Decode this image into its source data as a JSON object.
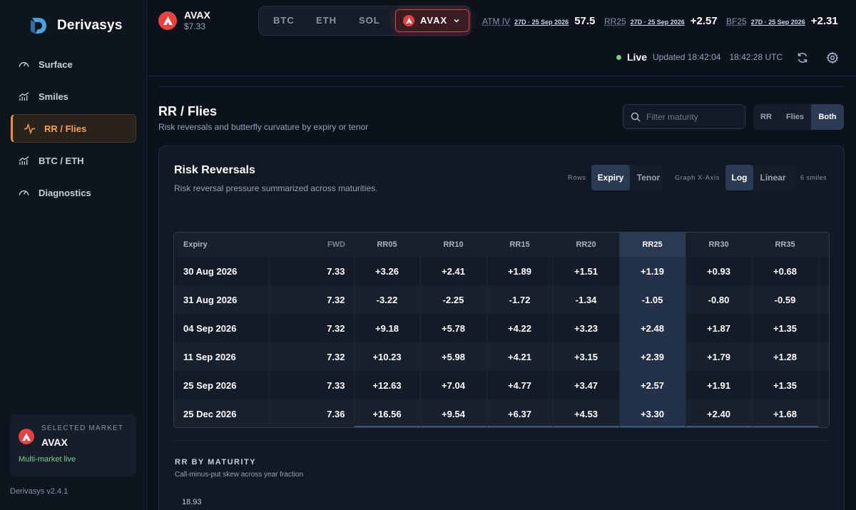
{
  "brand": {
    "name": "Derivasys",
    "version": "Derivasys v2.4.1"
  },
  "sidebar": {
    "items": [
      {
        "label": "Surface",
        "icon": "gauge-icon"
      },
      {
        "label": "Smiles",
        "icon": "bar-trend-icon"
      },
      {
        "label": "RR / Flies",
        "icon": "pulse-icon",
        "active": true
      },
      {
        "label": "BTC / ETH",
        "icon": "bar-trend-icon"
      },
      {
        "label": "Diagnostics",
        "icon": "gauge-icon"
      }
    ],
    "market_card": {
      "label": "SELECTED MARKET",
      "name": "AVAX",
      "status": "Multi-market live"
    }
  },
  "header": {
    "coin": {
      "symbol": "AVAX",
      "price": "$7.33",
      "color": "#e84142"
    },
    "asset_tabs": [
      "BTC",
      "ETH",
      "SOL",
      "AVAX"
    ],
    "active_asset": "AVAX",
    "metrics": [
      {
        "name": "ATM IV",
        "tenor": "27D · 25 Sep 2026",
        "value": "57.5"
      },
      {
        "name": "RR25",
        "tenor": "27D · 25 Sep 2026",
        "value": "+2.57"
      },
      {
        "name": "BF25",
        "tenor": "27D · 25 Sep 2026",
        "value": "+2.31"
      }
    ],
    "live": {
      "label": "Live",
      "updated": "Updated 18:42:04",
      "utc": "18:42:28 UTC"
    }
  },
  "page": {
    "title": "RR / Flies",
    "subtitle": "Risk reversals and butterfly curvature by expiry or tenor",
    "filter_placeholder": "Filter maturity",
    "view_toggle": [
      "RR",
      "Flies",
      "Both"
    ],
    "active_view": "Both"
  },
  "card": {
    "title": "Risk Reversals",
    "subtitle": "Risk reversal pressure summarized across maturities.",
    "rows_label": "Rows",
    "rows_options": [
      "Expiry",
      "Tenor"
    ],
    "rows_active": "Expiry",
    "xaxis_label": "Graph X-Axis",
    "xaxis_options": [
      "Log",
      "Linear"
    ],
    "xaxis_active": "Log",
    "smiles_count": "6 smiles"
  },
  "table": {
    "headers": [
      "Expiry",
      "FWD",
      "RR05",
      "RR10",
      "RR15",
      "RR20",
      "RR25",
      "RR30",
      "RR35"
    ],
    "highlight_column": "RR25",
    "rows": [
      [
        "30 Aug 2026",
        "7.33",
        "+3.26",
        "+2.41",
        "+1.89",
        "+1.51",
        "+1.19",
        "+0.93",
        "+0.68"
      ],
      [
        "31 Aug 2026",
        "7.32",
        "-3.22",
        "-2.25",
        "-1.72",
        "-1.34",
        "-1.05",
        "-0.80",
        "-0.59"
      ],
      [
        "04 Sep 2026",
        "7.32",
        "+9.18",
        "+5.78",
        "+4.22",
        "+3.23",
        "+2.48",
        "+1.87",
        "+1.35"
      ],
      [
        "11 Sep 2026",
        "7.32",
        "+10.23",
        "+5.98",
        "+4.21",
        "+3.15",
        "+2.39",
        "+1.79",
        "+1.28"
      ],
      [
        "25 Sep 2026",
        "7.33",
        "+12.63",
        "+7.04",
        "+4.77",
        "+3.47",
        "+2.57",
        "+1.91",
        "+1.35"
      ],
      [
        "25 Dec 2026",
        "7.36",
        "+16.56",
        "+9.54",
        "+6.37",
        "+4.53",
        "+3.30",
        "+2.40",
        "+1.68"
      ]
    ]
  },
  "rr_chart": {
    "title": "RR BY MATURITY",
    "subtitle": "Call-minus-put skew across year fraction",
    "top_tick": "18.93"
  },
  "colors": {
    "accent": "#e8913a",
    "live": "#6fd483",
    "avax": "#e84142"
  }
}
